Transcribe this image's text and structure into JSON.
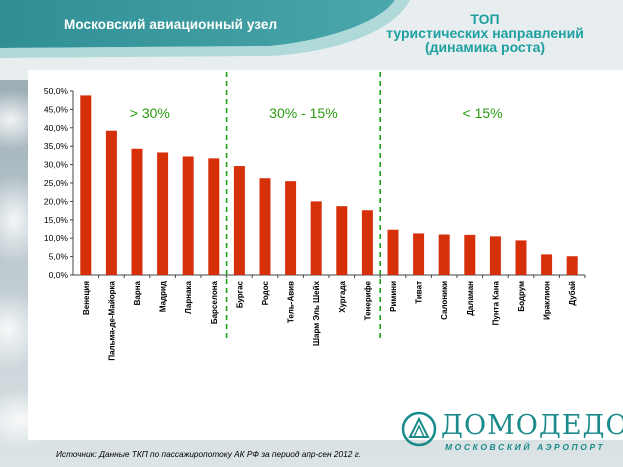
{
  "header": {
    "title": "Московский авиационный узел",
    "chart_title_line1": "ТОП",
    "chart_title_line2": "туристических направлений",
    "chart_title_line3": "(динамика роста)"
  },
  "chart_data": {
    "type": "bar",
    "categories": [
      "Венеция",
      "Пальма-де-Майорка",
      "Варна",
      "Мадрид",
      "Ларнака",
      "Барселона",
      "Бургас",
      "Родос",
      "Тель-Авив",
      "Шарм Эль Шейх",
      "Хургада",
      "Тенерифе",
      "Римини",
      "Тиват",
      "Салоники",
      "Даламан",
      "Пунта Кана",
      "Бодрум",
      "Ираклион",
      "Дубай"
    ],
    "values": [
      48.8,
      39.2,
      34.3,
      33.3,
      32.2,
      31.7,
      29.6,
      26.3,
      25.5,
      20.0,
      18.7,
      17.6,
      12.3,
      11.3,
      11.0,
      10.9,
      10.5,
      9.4,
      5.6,
      5.1
    ],
    "ylim": [
      0,
      50
    ],
    "y_ticks": [
      "0,0%",
      "5,0%",
      "10,0%",
      "15,0%",
      "20,0%",
      "25,0%",
      "30,0%",
      "35,0%",
      "40,0%",
      "45,0%",
      "50,0%"
    ],
    "bar_color": "#d5300a",
    "divider_color": "#1aa31a",
    "divider_after": [
      6,
      12
    ],
    "groups": [
      {
        "label": "> 30%",
        "from": 0,
        "to": 6
      },
      {
        "label": "30% - 15%",
        "from": 6,
        "to": 12
      },
      {
        "label": "< 15%",
        "from": 12,
        "to": 20
      }
    ],
    "group_label_color": "#2a9a10",
    "grid": false
  },
  "footer": {
    "source": "Источник: Данные ТКП по пассажиропотоку АК РФ за период апр-сен 2012 г.",
    "logo_name": "ДОМОДЕДОВО",
    "logo_sub": "МОСКОВСКИЙ АЭРОПОРТ",
    "brand_color": "#1a8a8a"
  }
}
